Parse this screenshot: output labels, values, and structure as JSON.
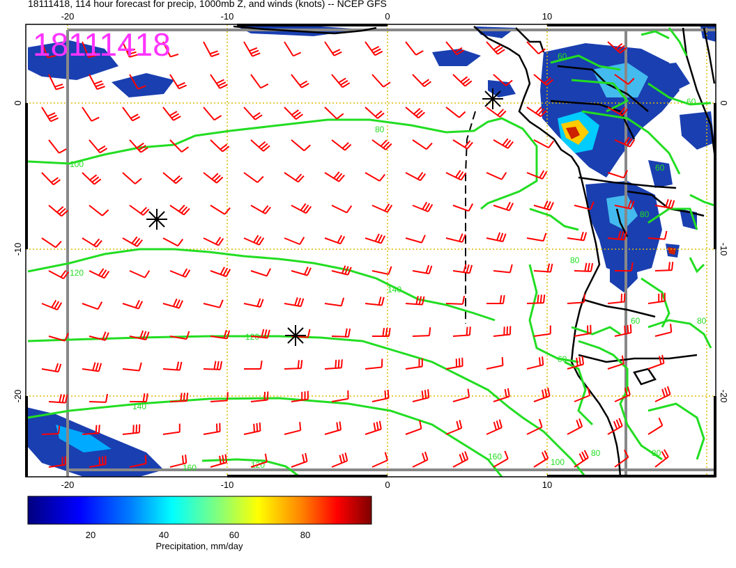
{
  "title": "18111418, 114 hour forecast for precip, 1000mb Z, and winds (knots) -- NCEP GFS",
  "stamp": "18111418",
  "axes": {
    "lon_top": [
      "-20",
      "-10",
      "0",
      "10"
    ],
    "lon_bottom": [
      "-20",
      "-10",
      "0",
      "10"
    ],
    "lat_left": [
      "0",
      "-10",
      "-20"
    ],
    "lat_right": [
      "0",
      "-10",
      "-20"
    ]
  },
  "contour_labels": [
    "80",
    "60",
    "100",
    "120",
    "120",
    "140",
    "140",
    "160",
    "160",
    "120",
    "100",
    "80",
    "60",
    "60",
    "80",
    "60",
    "60",
    "80",
    "80",
    "80"
  ],
  "colorbar": {
    "label": "Precipitation, mm/day",
    "ticks": [
      "20",
      "40",
      "60",
      "80"
    ],
    "range": [
      1,
      98
    ],
    "colors": [
      "#00007f",
      "#0000ff",
      "#007fff",
      "#00ffff",
      "#7fff7f",
      "#ffff00",
      "#ff7f00",
      "#ff0000",
      "#7f0000"
    ]
  },
  "colors": {
    "contour": "#22dd22",
    "wind_barb": "#ff0000",
    "grid": "#ddbb00",
    "coast": "#000000",
    "frame": "#888888",
    "stamp": "#ff33ff"
  },
  "legend_icons": [
    "low-pressure-star-icon"
  ]
}
